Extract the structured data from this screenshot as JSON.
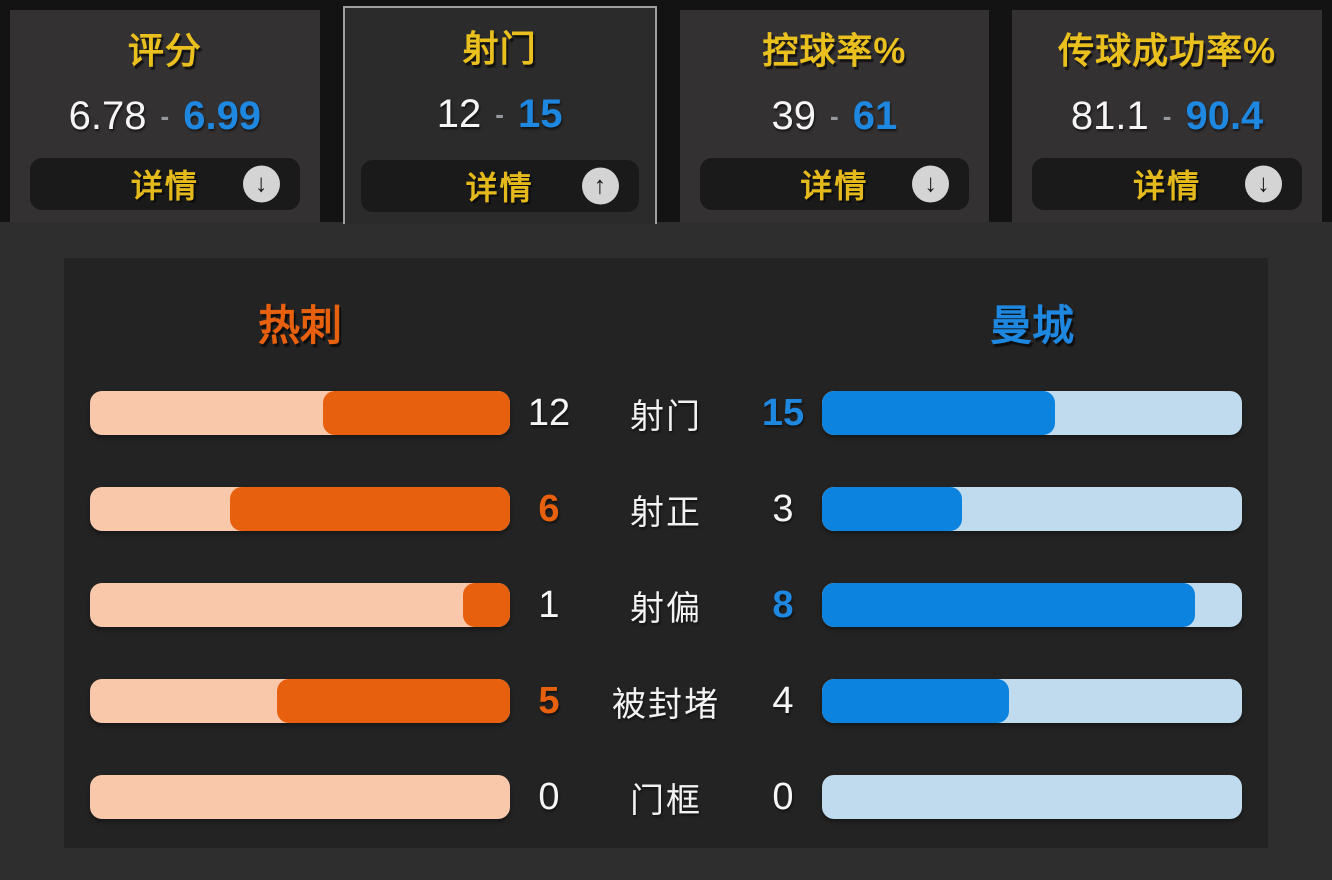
{
  "ui": {
    "separator": "-"
  },
  "colors": {
    "page_bg": "#2e2e2e",
    "tabs_bg": "#131313",
    "tab_bg": "#343132",
    "tab_active_bg": "#2b2b2b",
    "tab_active_border": "#9f9f9f",
    "panel_bg": "#232323",
    "title_yellow": "#e9c01e",
    "btn_yellow": "#e3b91c",
    "white": "#f5f5f5",
    "blue": "#1e87e0",
    "blue_fill": "#0c83de",
    "blue_track": "#c0daee",
    "orange": "#e7600e",
    "orange_track": "#f9c7aa",
    "button_bg": "#1a1a1a",
    "icon_circle": "#d4d4d4"
  },
  "tabs": [
    {
      "title": "评分",
      "home": "6.78",
      "away": "6.99",
      "button": "详情",
      "arrow": "down",
      "active": false
    },
    {
      "title": "射门",
      "home": "12",
      "away": "15",
      "button": "详情",
      "arrow": "up",
      "active": true
    },
    {
      "title": "控球率%",
      "home": "39",
      "away": "61",
      "button": "详情",
      "arrow": "down",
      "active": false
    },
    {
      "title": "传球成功率%",
      "home": "81.1",
      "away": "90.4",
      "button": "详情",
      "arrow": "down",
      "active": false
    }
  ],
  "panel": {
    "home_team": "热刺",
    "away_team": "曼城",
    "rows": [
      {
        "label": "射门",
        "home": 12,
        "away": 15
      },
      {
        "label": "射正",
        "home": 6,
        "away": 3
      },
      {
        "label": "射偏",
        "home": 1,
        "away": 8
      },
      {
        "label": "被封堵",
        "home": 5,
        "away": 4
      },
      {
        "label": "门框",
        "home": 0,
        "away": 0
      }
    ]
  },
  "chart_data": {
    "type": "bar",
    "orientation": "horizontal",
    "categories": [
      "射门",
      "射正",
      "射偏",
      "被封堵",
      "门框"
    ],
    "series": [
      {
        "name": "热刺",
        "color": "#e7600e",
        "values": [
          12,
          6,
          1,
          5,
          0
        ]
      },
      {
        "name": "曼城",
        "color": "#0c83de",
        "values": [
          15,
          3,
          8,
          4,
          0
        ]
      }
    ],
    "value_scale": "each bar filled proportionally to value/(home+away) of its row",
    "summary_tabs": [
      {
        "title": "评分",
        "home": 6.78,
        "away": 6.99
      },
      {
        "title": "射门",
        "home": 12,
        "away": 15
      },
      {
        "title": "控球率%",
        "home": 39,
        "away": 61
      },
      {
        "title": "传球成功率%",
        "home": 81.1,
        "away": 90.4
      }
    ]
  }
}
